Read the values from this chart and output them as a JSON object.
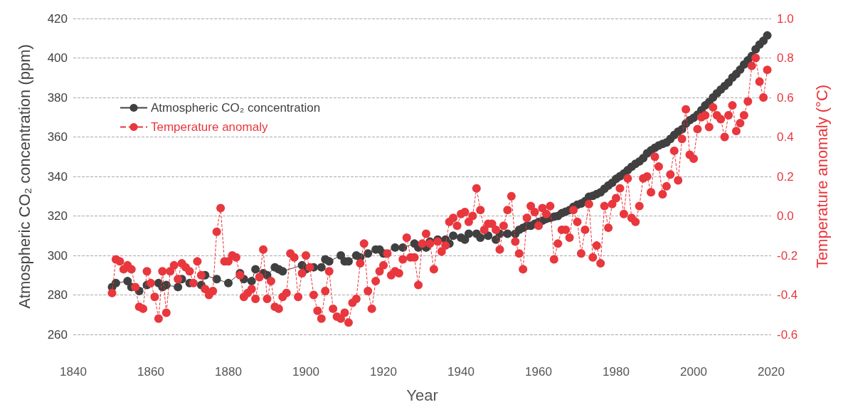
{
  "chart_data": {
    "type": "line",
    "xlabel": "Year",
    "ylabel": "Atmospheric CO₂ concentration (ppm)",
    "y2label": "Temperature anomaly (°C)",
    "xlim": [
      1840,
      2020
    ],
    "xticks": [
      1840,
      1860,
      1880,
      1900,
      1920,
      1940,
      1960,
      1980,
      2000,
      2020
    ],
    "ylim": [
      260,
      420
    ],
    "yticks": [
      260,
      280,
      300,
      320,
      340,
      360,
      380,
      400,
      420
    ],
    "y2lim": [
      -0.6,
      1.0
    ],
    "y2ticks": [
      -0.6,
      -0.4,
      -0.2,
      {
        "value": 0,
        "label": "0.0"
      },
      0.2,
      0.4,
      0.6,
      0.8,
      {
        "value": 1,
        "label": "1.0"
      }
    ],
    "grid": "y",
    "legend": "top left",
    "marker": "circle",
    "x": [
      1850,
      1851,
      1852,
      1853,
      1854,
      1855,
      1856,
      1857,
      1858,
      1859,
      1860,
      1861,
      1862,
      1863,
      1864,
      1865,
      1866,
      1867,
      1868,
      1869,
      1870,
      1871,
      1872,
      1873,
      1874,
      1875,
      1876,
      1877,
      1878,
      1879,
      1880,
      1881,
      1882,
      1883,
      1884,
      1885,
      1886,
      1887,
      1888,
      1889,
      1890,
      1891,
      1892,
      1893,
      1894,
      1895,
      1896,
      1897,
      1898,
      1899,
      1900,
      1901,
      1902,
      1903,
      1904,
      1905,
      1906,
      1907,
      1908,
      1909,
      1910,
      1911,
      1912,
      1913,
      1914,
      1915,
      1916,
      1917,
      1918,
      1919,
      1920,
      1921,
      1922,
      1923,
      1924,
      1925,
      1926,
      1927,
      1928,
      1929,
      1930,
      1931,
      1932,
      1933,
      1934,
      1935,
      1936,
      1937,
      1938,
      1939,
      1940,
      1941,
      1942,
      1943,
      1944,
      1945,
      1946,
      1947,
      1948,
      1949,
      1950,
      1951,
      1952,
      1953,
      1954,
      1955,
      1956,
      1957,
      1958,
      1959,
      1960,
      1961,
      1962,
      1963,
      1964,
      1965,
      1966,
      1967,
      1968,
      1969,
      1970,
      1971,
      1972,
      1973,
      1974,
      1975,
      1976,
      1977,
      1978,
      1979,
      1980,
      1981,
      1982,
      1983,
      1984,
      1985,
      1986,
      1987,
      1988,
      1989,
      1990,
      1991,
      1992,
      1993,
      1994,
      1995,
      1996,
      1997,
      1998,
      1999,
      2000,
      2001,
      2002,
      2003,
      2004,
      2005,
      2006,
      2007,
      2008,
      2009,
      2010,
      2011,
      2012,
      2013,
      2014,
      2015,
      2016,
      2017,
      2018,
      2019
    ],
    "series": [
      {
        "name": "Atmospheric CO₂ concentration",
        "line_style": "solid",
        "color": "#404040",
        "x": [
          1850,
          1851,
          1854,
          1855,
          1857,
          1859,
          1862,
          1863,
          1864,
          1867,
          1868,
          1870,
          1873,
          1874,
          1877,
          1880,
          1883,
          1884,
          1886,
          1887,
          1889,
          1890,
          1892,
          1893,
          1894,
          1899,
          1900,
          1902,
          1904,
          1905,
          1906,
          1909,
          1910,
          1911,
          1913,
          1914,
          1916,
          1918,
          1919,
          1920,
          1923,
          1925,
          1928,
          1929,
          1931,
          1932,
          1934,
          1936,
          1937,
          1938,
          1940,
          1941,
          1942,
          1944,
          1945,
          1947,
          1949,
          1950,
          1952,
          1954,
          1955,
          1956,
          1957,
          1958,
          1959,
          1960,
          1961,
          1962,
          1963,
          1964,
          1965,
          1966,
          1967,
          1968,
          1969,
          1970,
          1971,
          1972,
          1973,
          1974,
          1975,
          1976,
          1977,
          1978,
          1979,
          1980,
          1981,
          1982,
          1983,
          1984,
          1985,
          1986,
          1987,
          1988,
          1989,
          1990,
          1991,
          1992,
          1993,
          1994,
          1995,
          1996,
          1997,
          1998,
          1999,
          2000,
          2001,
          2002,
          2003,
          2004,
          2005,
          2006,
          2007,
          2008,
          2009,
          2010,
          2011,
          2012,
          2013,
          2014,
          2015,
          2016,
          2017,
          2018,
          2019
        ],
        "values": [
          284,
          286,
          287,
          284,
          282,
          285,
          286,
          284,
          285,
          284,
          288,
          286,
          285,
          290,
          288,
          286,
          291,
          288,
          287,
          293,
          291,
          290,
          294,
          293,
          292,
          295,
          293,
          294,
          294,
          298,
          297,
          300,
          297,
          297,
          300,
          299,
          301,
          303,
          303,
          301,
          304,
          304,
          306,
          304,
          304,
          307,
          308,
          308,
          306,
          310,
          309,
          308,
          311,
          311,
          309,
          310,
          308,
          311,
          311,
          311,
          313,
          314,
          315,
          315,
          316.0,
          316.9,
          317.6,
          318.5,
          319.0,
          319.6,
          320.0,
          321.4,
          322.2,
          323.0,
          324.6,
          325.7,
          326.3,
          327.5,
          329.7,
          330.2,
          331.1,
          332.0,
          333.8,
          335.4,
          336.8,
          338.8,
          340.1,
          341.5,
          343.2,
          344.9,
          346.4,
          347.6,
          349.3,
          351.7,
          353.2,
          354.5,
          355.7,
          356.5,
          357.2,
          359.0,
          361.0,
          362.7,
          363.9,
          366.8,
          368.5,
          369.7,
          371.3,
          373.5,
          376.0,
          377.7,
          380.0,
          382.1,
          384.0,
          385.8,
          387.6,
          390.1,
          391.9,
          394.1,
          396.7,
          398.8,
          401.0,
          404.4,
          406.8,
          408.7,
          411.4
        ]
      },
      {
        "name": "Temperature anomaly",
        "line_style": "dashed",
        "color": "#e8373d",
        "axis": "y2",
        "values": [
          -0.39,
          -0.22,
          -0.23,
          -0.27,
          -0.25,
          -0.27,
          -0.36,
          -0.46,
          -0.47,
          -0.28,
          -0.34,
          -0.41,
          -0.52,
          -0.28,
          -0.49,
          -0.28,
          -0.25,
          -0.32,
          -0.24,
          -0.26,
          -0.28,
          -0.34,
          -0.23,
          -0.3,
          -0.37,
          -0.4,
          -0.38,
          -0.08,
          0.04,
          -0.23,
          -0.23,
          -0.2,
          -0.21,
          -0.3,
          -0.41,
          -0.39,
          -0.37,
          -0.42,
          -0.31,
          -0.17,
          -0.42,
          -0.33,
          -0.46,
          -0.47,
          -0.41,
          -0.39,
          -0.19,
          -0.21,
          -0.41,
          -0.29,
          -0.2,
          -0.26,
          -0.4,
          -0.48,
          -0.52,
          -0.38,
          -0.28,
          -0.47,
          -0.51,
          -0.52,
          -0.49,
          -0.54,
          -0.44,
          -0.42,
          -0.24,
          -0.14,
          -0.38,
          -0.47,
          -0.33,
          -0.28,
          -0.25,
          -0.19,
          -0.3,
          -0.28,
          -0.29,
          -0.22,
          -0.11,
          -0.21,
          -0.21,
          -0.35,
          -0.14,
          -0.09,
          -0.14,
          -0.27,
          -0.13,
          -0.18,
          -0.15,
          -0.03,
          -0.01,
          -0.05,
          0.01,
          0.02,
          -0.03,
          0.0,
          0.14,
          0.03,
          -0.07,
          -0.04,
          -0.04,
          -0.07,
          -0.17,
          -0.05,
          0.03,
          0.1,
          -0.13,
          -0.19,
          -0.27,
          -0.01,
          0.05,
          0.02,
          -0.05,
          0.04,
          0.01,
          0.05,
          -0.22,
          -0.14,
          -0.07,
          -0.07,
          -0.11,
          0.03,
          -0.03,
          -0.19,
          -0.07,
          0.06,
          -0.21,
          -0.15,
          -0.24,
          0.05,
          -0.06,
          0.06,
          0.09,
          0.14,
          0.01,
          0.19,
          -0.01,
          -0.03,
          0.05,
          0.19,
          0.2,
          0.12,
          0.3,
          0.25,
          0.11,
          0.15,
          0.21,
          0.33,
          0.18,
          0.39,
          0.54,
          0.31,
          0.29,
          0.44,
          0.5,
          0.51,
          0.45,
          0.55,
          0.51,
          0.49,
          0.4,
          0.51,
          0.56,
          0.43,
          0.47,
          0.51,
          0.58,
          0.76,
          0.8,
          0.68,
          0.6,
          0.74
        ]
      }
    ]
  }
}
